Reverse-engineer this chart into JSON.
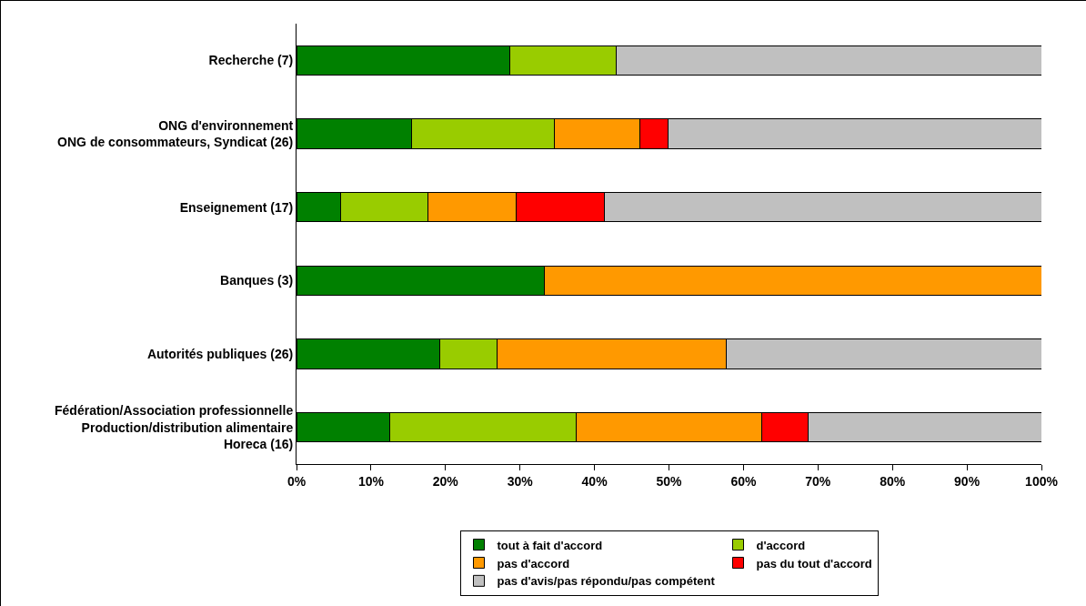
{
  "chart_data": {
    "type": "bar",
    "orientation": "horizontal",
    "stacked": true,
    "categories": [
      "Recherche (7)",
      "ONG d'environnement\nONG de consommateurs, Syndicat (26)",
      "Enseignement (17)",
      "Banques (3)",
      "Autorités publiques (26)",
      "Fédération/Association professionnelle\nProduction/distribution alimentaire\nHoreca (16)"
    ],
    "series": [
      {
        "name": "tout à fait d'accord",
        "color": "#008000",
        "values": [
          28.6,
          15.4,
          5.9,
          33.3,
          19.2,
          12.5
        ]
      },
      {
        "name": "d'accord",
        "color": "#99cc00",
        "values": [
          14.3,
          19.2,
          11.8,
          null,
          7.7,
          25
        ]
      },
      {
        "name": "pas d'accord",
        "color": "#ff9900",
        "values": [
          null,
          11.5,
          11.8,
          66.7,
          30.8,
          25
        ]
      },
      {
        "name": "pas du tout d'accord",
        "color": "#ff0000",
        "values": [
          null,
          3.8,
          11.8,
          null,
          null,
          6.2
        ]
      },
      {
        "name": "pas d'avis/pas répondu/pas compétent",
        "color": "#c0c0c0",
        "values": [
          57.1,
          50.1,
          58.7,
          null,
          42.3,
          31.3
        ]
      }
    ],
    "xlim": [
      0,
      100
    ],
    "xticks": [
      {
        "value": 0,
        "label": "0%"
      },
      {
        "value": 10,
        "label": "10%"
      },
      {
        "value": 20,
        "label": "20%"
      },
      {
        "value": 30,
        "label": "30%"
      },
      {
        "value": 40,
        "label": "40%"
      },
      {
        "value": 50,
        "label": "50%"
      },
      {
        "value": 60,
        "label": "60%"
      },
      {
        "value": 70,
        "label": "70%"
      },
      {
        "value": 80,
        "label": "80%"
      },
      {
        "value": 90,
        "label": "90%"
      },
      {
        "value": 100,
        "label": "100%"
      }
    ],
    "grid": false,
    "legend": "bottom"
  }
}
